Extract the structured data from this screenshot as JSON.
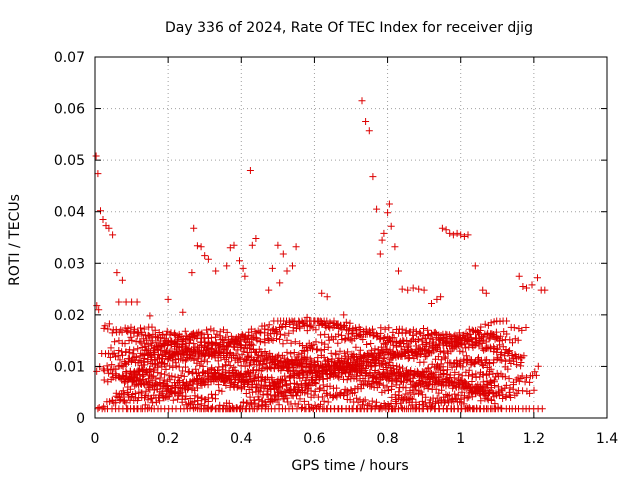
{
  "chart_data": {
    "type": "scatter",
    "title": "Day 336 of 2024, Rate Of TEC Index for receiver djig",
    "xlabel": "GPS time / hours",
    "ylabel": "ROTI / TECUs",
    "xlim": [
      0,
      1.4
    ],
    "ylim": [
      0,
      0.07
    ],
    "x_ticks": [
      0,
      0.2,
      0.4,
      0.6,
      0.8,
      1,
      1.2,
      1.4
    ],
    "x_tick_labels": [
      "0",
      "0.2",
      "0.4",
      "0.6",
      "0.8",
      "1",
      "1.2",
      "1.4"
    ],
    "y_ticks": [
      0,
      0.01,
      0.02,
      0.03,
      0.04,
      0.05,
      0.06,
      0.07
    ],
    "y_tick_labels": [
      "0",
      "0.01",
      "0.02",
      "0.03",
      "0.04",
      "0.05",
      "0.06",
      "0.07"
    ],
    "grid": true,
    "marker": "+",
    "color": "#dd0000",
    "series": [
      {
        "name": "ROTI",
        "points": [
          [
            0.003,
            0.0508
          ],
          [
            0.008,
            0.0474
          ],
          [
            0.015,
            0.0402
          ],
          [
            0.022,
            0.0385
          ],
          [
            0.03,
            0.0373
          ],
          [
            0.038,
            0.0368
          ],
          [
            0.048,
            0.0355
          ],
          [
            0.06,
            0.0282
          ],
          [
            0.075,
            0.0267
          ],
          [
            0.005,
            0.0218
          ],
          [
            0.01,
            0.021
          ],
          [
            0.065,
            0.0225
          ],
          [
            0.085,
            0.0225
          ],
          [
            0.1,
            0.0225
          ],
          [
            0.115,
            0.0225
          ],
          [
            0.27,
            0.0368
          ],
          [
            0.28,
            0.0334
          ],
          [
            0.29,
            0.0332
          ],
          [
            0.3,
            0.0315
          ],
          [
            0.31,
            0.0308
          ],
          [
            0.265,
            0.0282
          ],
          [
            0.33,
            0.0285
          ],
          [
            0.36,
            0.0295
          ],
          [
            0.37,
            0.033
          ],
          [
            0.38,
            0.0335
          ],
          [
            0.395,
            0.0305
          ],
          [
            0.405,
            0.029
          ],
          [
            0.425,
            0.048
          ],
          [
            0.43,
            0.0335
          ],
          [
            0.44,
            0.0348
          ],
          [
            0.41,
            0.0275
          ],
          [
            0.485,
            0.029
          ],
          [
            0.5,
            0.0335
          ],
          [
            0.515,
            0.0318
          ],
          [
            0.525,
            0.0285
          ],
          [
            0.54,
            0.0295
          ],
          [
            0.55,
            0.0332
          ],
          [
            0.505,
            0.0262
          ],
          [
            0.475,
            0.0248
          ],
          [
            0.73,
            0.0615
          ],
          [
            0.74,
            0.0575
          ],
          [
            0.75,
            0.0557
          ],
          [
            0.76,
            0.0468
          ],
          [
            0.77,
            0.0405
          ],
          [
            0.78,
            0.0318
          ],
          [
            0.785,
            0.0345
          ],
          [
            0.79,
            0.0358
          ],
          [
            0.8,
            0.0398
          ],
          [
            0.805,
            0.0415
          ],
          [
            0.81,
            0.0372
          ],
          [
            0.82,
            0.0332
          ],
          [
            0.83,
            0.0285
          ],
          [
            0.84,
            0.025
          ],
          [
            0.855,
            0.0248
          ],
          [
            0.87,
            0.0252
          ],
          [
            0.885,
            0.025
          ],
          [
            0.95,
            0.0368
          ],
          [
            0.96,
            0.0365
          ],
          [
            0.97,
            0.0358
          ],
          [
            0.98,
            0.0355
          ],
          [
            0.99,
            0.0358
          ],
          [
            1.0,
            0.0355
          ],
          [
            1.01,
            0.0352
          ],
          [
            1.02,
            0.0355
          ],
          [
            1.04,
            0.0295
          ],
          [
            1.06,
            0.0248
          ],
          [
            1.07,
            0.0242
          ],
          [
            1.16,
            0.0275
          ],
          [
            1.17,
            0.0255
          ],
          [
            1.18,
            0.0252
          ],
          [
            1.195,
            0.0258
          ],
          [
            1.21,
            0.0272
          ],
          [
            1.22,
            0.0248
          ],
          [
            1.23,
            0.0248
          ],
          [
            0.92,
            0.0222
          ],
          [
            0.935,
            0.023
          ],
          [
            0.945,
            0.0235
          ],
          [
            0.9,
            0.0248
          ],
          [
            0.15,
            0.0198
          ],
          [
            0.2,
            0.023
          ],
          [
            0.24,
            0.0205
          ],
          [
            0.62,
            0.0242
          ],
          [
            0.635,
            0.0235
          ],
          [
            0.58,
            0.0195
          ],
          [
            0.68,
            0.02
          ]
        ]
      }
    ]
  }
}
